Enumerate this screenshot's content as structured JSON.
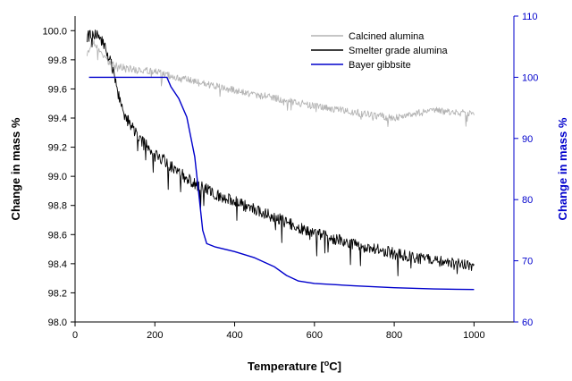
{
  "chart_data": {
    "type": "line",
    "x_axis": {
      "label_main": "Temperature [",
      "label_sup": "o",
      "label_end": "C]",
      "min": 0,
      "max": 1100,
      "ticks": [
        "0",
        "200",
        "400",
        "600",
        "800",
        "1000"
      ]
    },
    "y_left": {
      "label": "Change in mass %",
      "min": 98.0,
      "max": 100.1,
      "ticks": [
        "98.0",
        "98.2",
        "98.4",
        "98.6",
        "98.8",
        "99.0",
        "99.2",
        "99.4",
        "99.6",
        "99.8",
        "100.0"
      ],
      "color": "#000000"
    },
    "y_right": {
      "label": "Change in mass %",
      "min": 60,
      "max": 110,
      "ticks": [
        "60",
        "70",
        "80",
        "90",
        "100",
        "110"
      ],
      "color": "#0000cc"
    },
    "legend": {
      "position": "top-right",
      "entries": [
        "Calcined alumina",
        "Smelter grade alumina",
        "Bayer gibbsite"
      ]
    },
    "series": [
      {
        "name": "Calcined alumina",
        "axis": "left",
        "color": "#b4b4b4",
        "points": [
          [
            30,
            99.85
          ],
          [
            45,
            99.93
          ],
          [
            60,
            99.86
          ],
          [
            80,
            99.8
          ],
          [
            100,
            99.76
          ],
          [
            150,
            99.73
          ],
          [
            200,
            99.72
          ],
          [
            250,
            99.68
          ],
          [
            300,
            99.65
          ],
          [
            350,
            99.62
          ],
          [
            400,
            99.59
          ],
          [
            450,
            99.56
          ],
          [
            500,
            99.54
          ],
          [
            550,
            99.51
          ],
          [
            600,
            99.48
          ],
          [
            650,
            99.46
          ],
          [
            700,
            99.44
          ],
          [
            750,
            99.42
          ],
          [
            800,
            99.4
          ],
          [
            850,
            99.43
          ],
          [
            900,
            99.45
          ],
          [
            950,
            99.44
          ],
          [
            1000,
            99.43
          ]
        ],
        "noise": 0.025
      },
      {
        "name": "Smelter grade alumina",
        "axis": "left",
        "color": "#000000",
        "points": [
          [
            30,
            99.96
          ],
          [
            50,
            99.98
          ],
          [
            70,
            99.92
          ],
          [
            90,
            99.78
          ],
          [
            110,
            99.55
          ],
          [
            130,
            99.4
          ],
          [
            150,
            99.3
          ],
          [
            175,
            99.22
          ],
          [
            200,
            99.16
          ],
          [
            250,
            99.05
          ],
          [
            300,
            98.95
          ],
          [
            350,
            98.88
          ],
          [
            400,
            98.83
          ],
          [
            450,
            98.77
          ],
          [
            500,
            98.72
          ],
          [
            550,
            98.66
          ],
          [
            600,
            98.61
          ],
          [
            650,
            98.57
          ],
          [
            700,
            98.53
          ],
          [
            750,
            98.5
          ],
          [
            800,
            98.47
          ],
          [
            850,
            98.44
          ],
          [
            900,
            98.42
          ],
          [
            950,
            98.4
          ],
          [
            1000,
            98.38
          ]
        ],
        "noise": 0.04
      },
      {
        "name": "Bayer gibbsite",
        "axis": "right",
        "color": "#0000cc",
        "points": [
          [
            35,
            100
          ],
          [
            230,
            100
          ],
          [
            240,
            98.5
          ],
          [
            260,
            96.5
          ],
          [
            280,
            93.5
          ],
          [
            300,
            87
          ],
          [
            310,
            81
          ],
          [
            320,
            75
          ],
          [
            330,
            72.8
          ],
          [
            350,
            72.3
          ],
          [
            400,
            71.5
          ],
          [
            450,
            70.5
          ],
          [
            500,
            69
          ],
          [
            530,
            67.6
          ],
          [
            560,
            66.7
          ],
          [
            600,
            66.3
          ],
          [
            700,
            65.9
          ],
          [
            800,
            65.6
          ],
          [
            900,
            65.4
          ],
          [
            1000,
            65.3
          ]
        ]
      }
    ]
  }
}
